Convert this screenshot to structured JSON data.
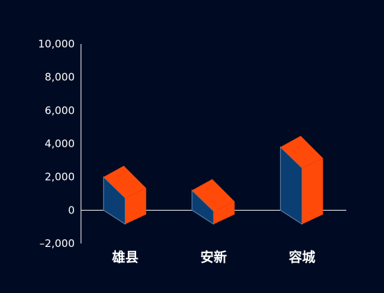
{
  "chart_data": {
    "type": "bar",
    "style": "3d-box",
    "categories": [
      "雄县",
      "安新",
      "容城"
    ],
    "values": [
      2000,
      1200,
      3800
    ],
    "ylim": [
      -2000,
      10000
    ],
    "yticks": [
      -2000,
      0,
      2000,
      4000,
      6000,
      8000,
      10000
    ],
    "ytick_labels": [
      "–2,000",
      "0",
      "2,000",
      "4,000",
      "6,000",
      "8,000",
      "10,000"
    ],
    "title": "",
    "xlabel": "",
    "ylabel": "",
    "grid": false,
    "colors": {
      "background": "#000b23",
      "axis": "#ffffff",
      "face_front": "#0b3f73",
      "face_side": "#ff4a0a",
      "face_top": "#ff4a0a",
      "edge": "#6a86a8",
      "text": "#ffffff"
    }
  }
}
